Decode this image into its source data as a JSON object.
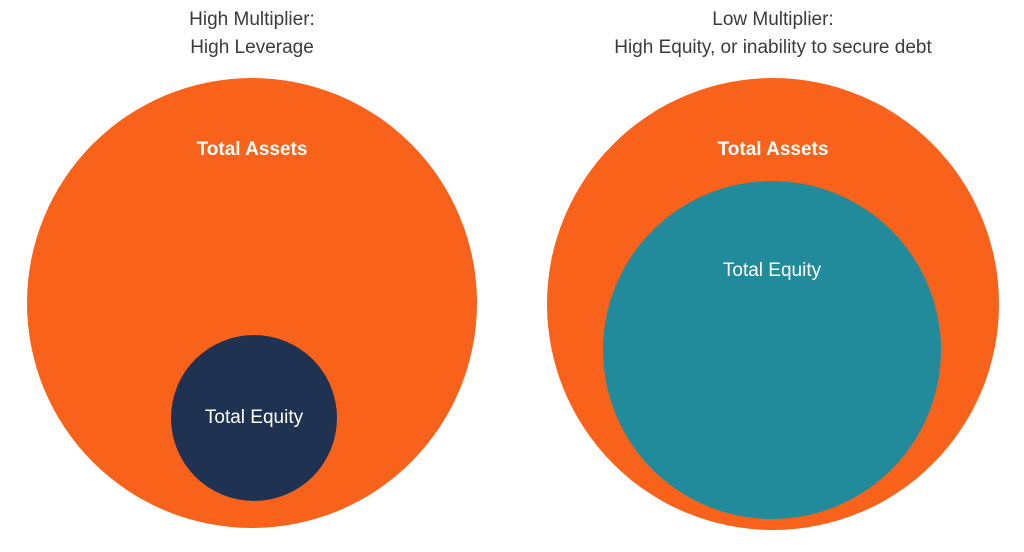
{
  "colors": {
    "assets_orange": "#F9621B",
    "equity_navy": "#1F3252",
    "equity_teal": "#218A9B",
    "title_text": "#3B3B3B",
    "label_text": "#FFFFFF"
  },
  "left_diagram": {
    "title_line1": "High Multiplier:",
    "title_line2": "High Leverage",
    "outer_circle_label": "Total Assets",
    "inner_circle_label": "Total Equity"
  },
  "right_diagram": {
    "title_line1": "Low Multiplier:",
    "title_line2": "High Equity, or inability to secure debt",
    "outer_circle_label": "Total Assets",
    "inner_circle_label": "Total Equity"
  }
}
